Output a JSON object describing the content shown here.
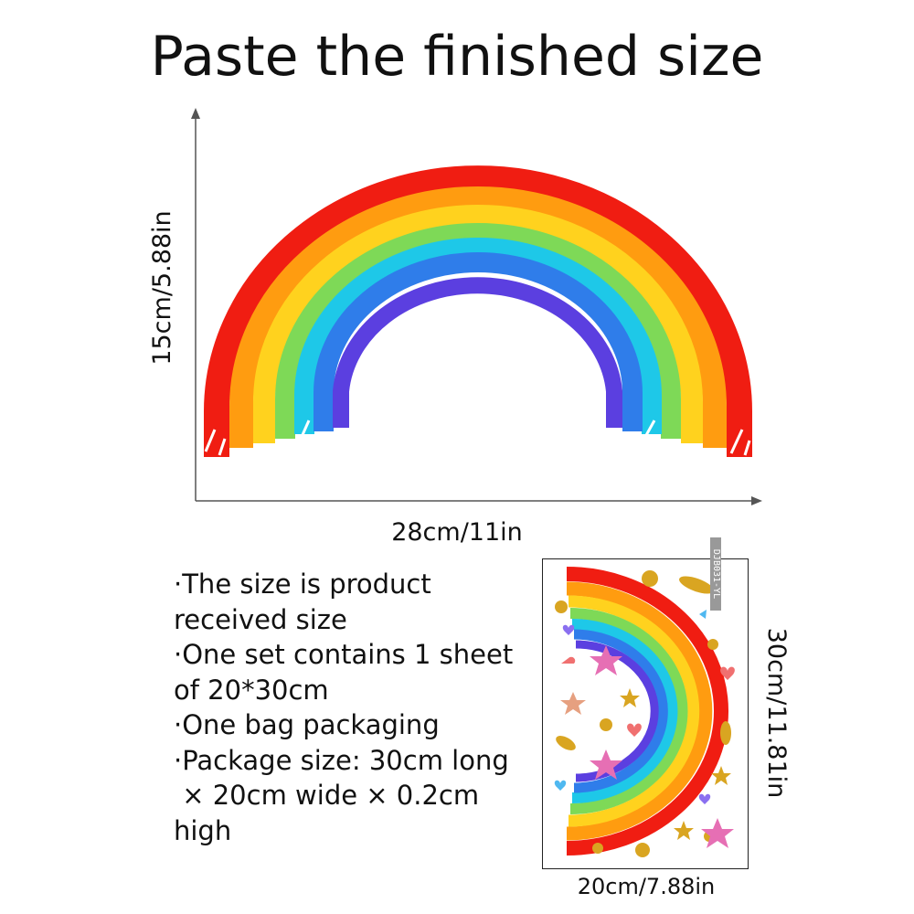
{
  "title": "Paste the finished size",
  "product": {
    "width_label": "28cm/11in",
    "height_label": "15cm/5.88in"
  },
  "notes": [
    "·The size is product",
    "received size",
    "·One set contains 1 sheet",
    "of 20*30cm",
    "·One bag packaging",
    "·Package size: 30cm long",
    " × 20cm wide × 0.2cm",
    "high"
  ],
  "sheet": {
    "width_label": "20cm/7.88in",
    "height_label": "30cm/11.81in",
    "code": "DJB031-YL"
  },
  "colors": {
    "red": "#f01d12",
    "orange": "#ff9c10",
    "yellow": "#ffd21e",
    "green": "#7ed957",
    "cyan": "#1ec8e8",
    "blue": "#2f7dea",
    "violet": "#5b3fe0",
    "gold": "#d9a521",
    "pink": "#e66fb4"
  }
}
